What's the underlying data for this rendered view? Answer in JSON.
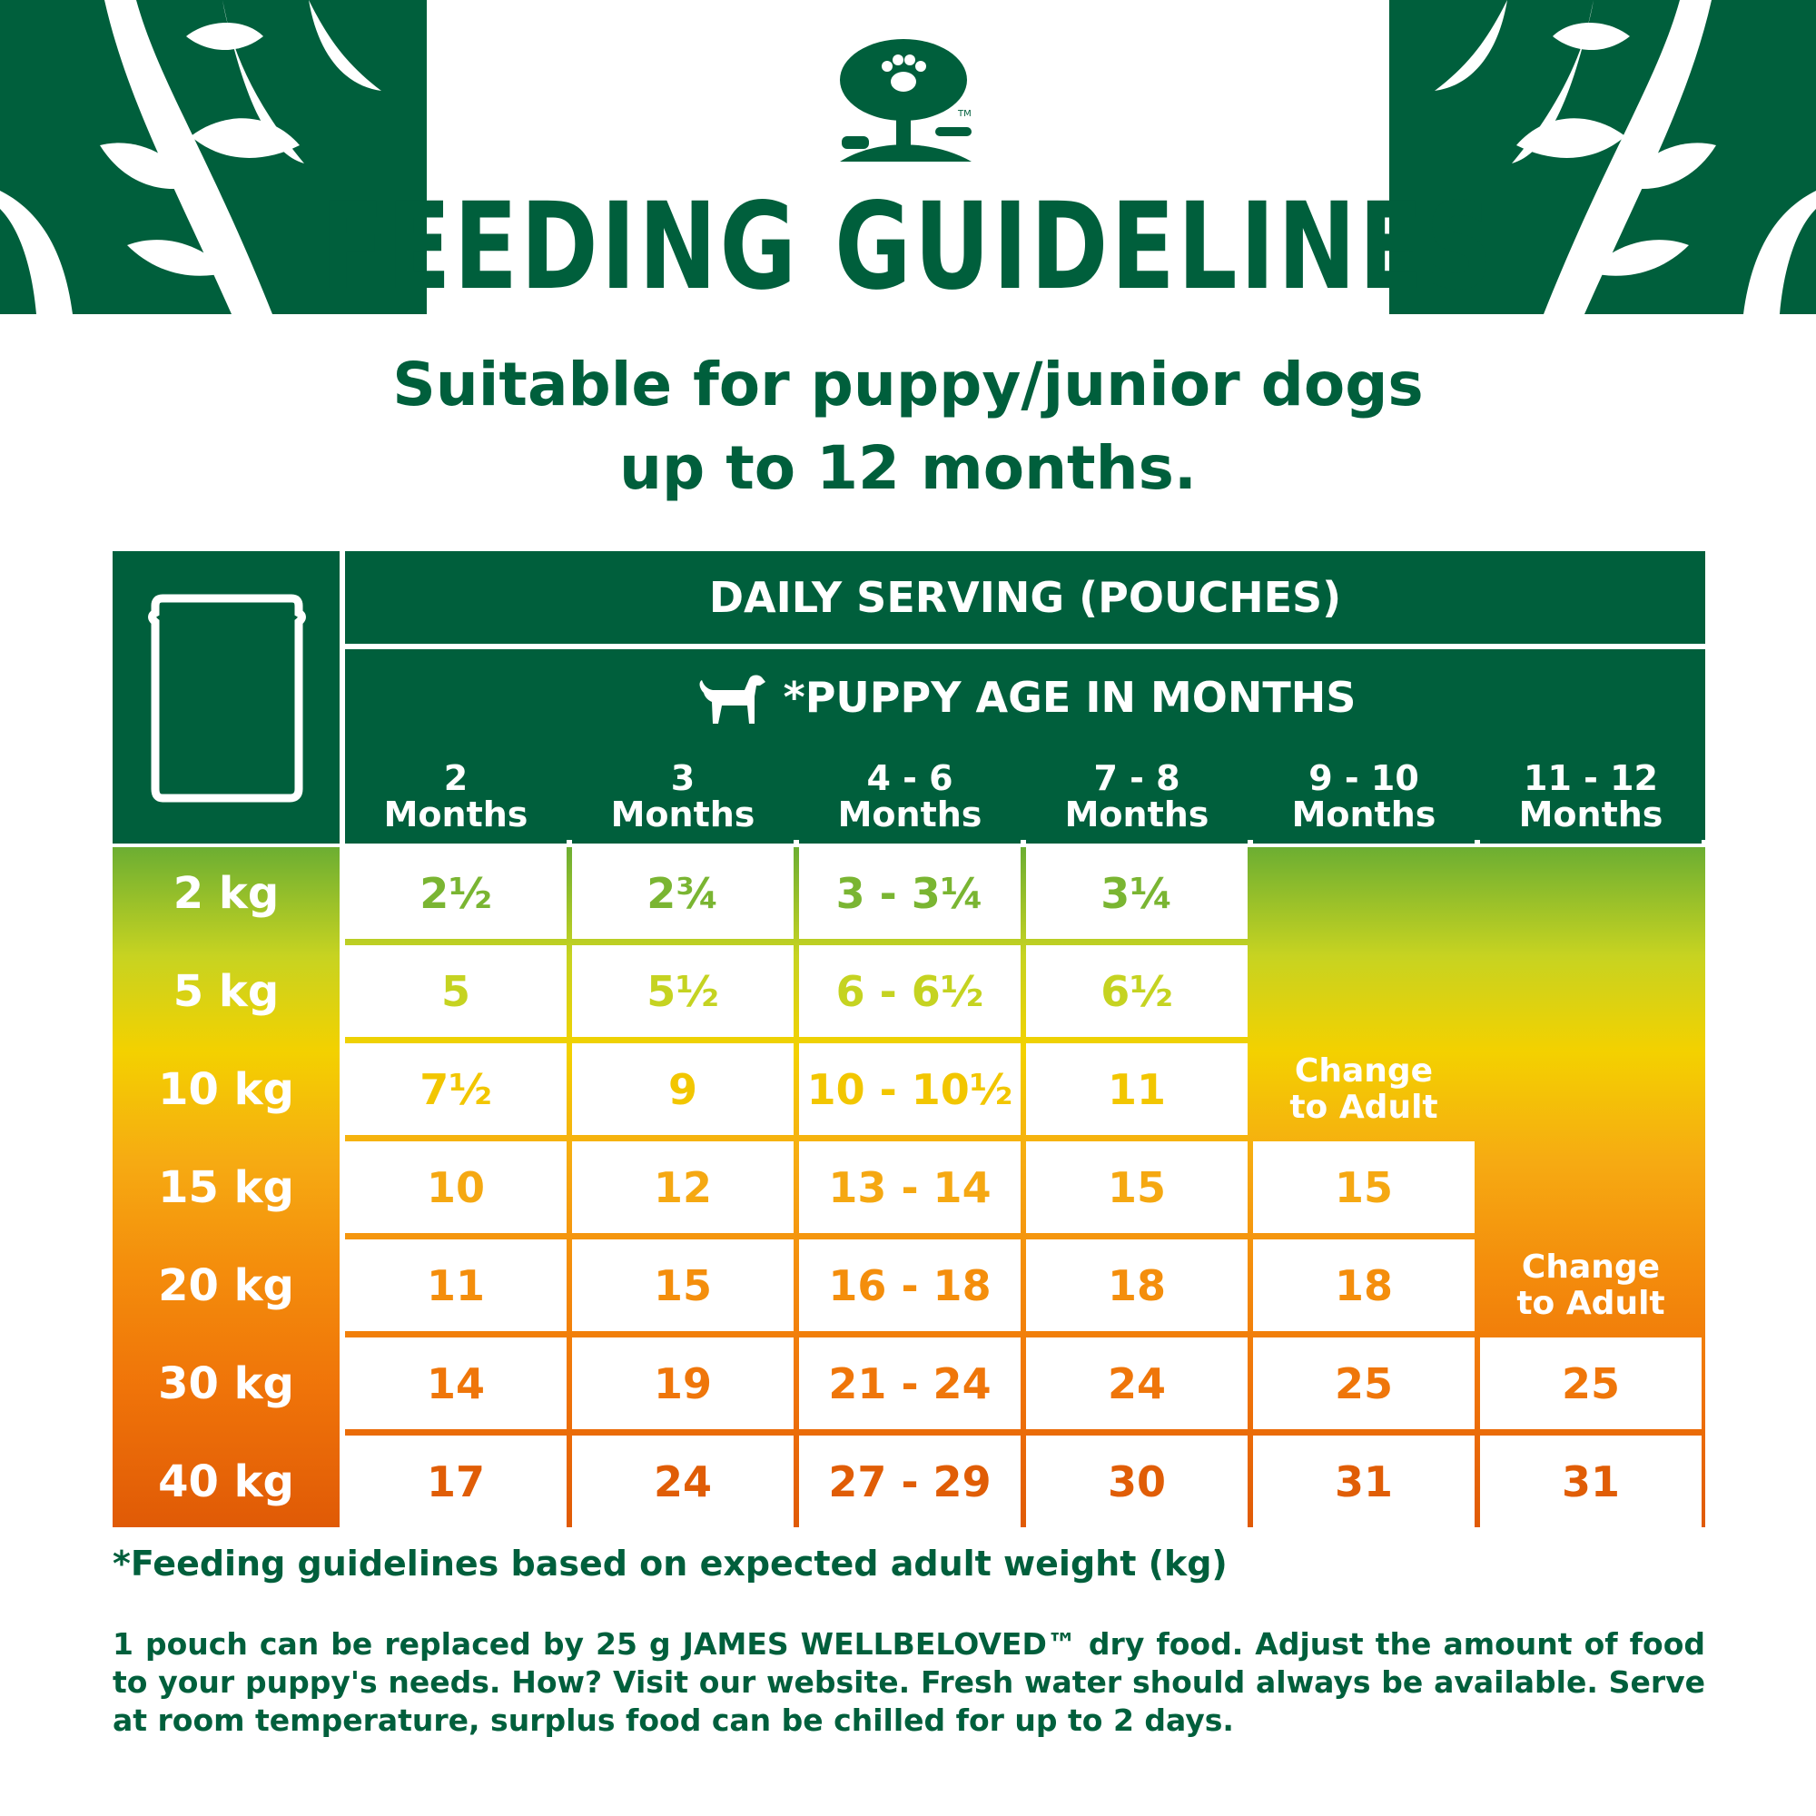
{
  "colors": {
    "brand_green": "#005f3c",
    "row_colors": [
      "#7ab532",
      "#c5d321",
      "#f2c600",
      "#f5a812",
      "#f48e0c",
      "#ef760a",
      "#e05d06"
    ]
  },
  "header": {
    "title": "FEEDING GUIDELINES",
    "subtitle_line1": "Suitable for puppy/junior dogs",
    "subtitle_line2": "up to 12 months."
  },
  "table": {
    "band1": "DAILY SERVING (POUCHES)",
    "band2": "*PUPPY AGE IN MONTHS",
    "age_columns": [
      {
        "top": "2",
        "bottom": "Months"
      },
      {
        "top": "3",
        "bottom": "Months"
      },
      {
        "top": "4 - 6",
        "bottom": "Months"
      },
      {
        "top": "7 - 8",
        "bottom": "Months"
      },
      {
        "top": "9 - 10",
        "bottom": "Months"
      },
      {
        "top": "11 - 12",
        "bottom": "Months"
      }
    ],
    "rows": [
      {
        "weight": "2 kg",
        "values": [
          "2½",
          "2¾",
          "3 - 3¼",
          "3¼",
          null,
          null
        ]
      },
      {
        "weight": "5 kg",
        "values": [
          "5",
          "5½",
          "6 - 6½",
          "6½",
          null,
          null
        ]
      },
      {
        "weight": "10 kg",
        "values": [
          "7½",
          "9",
          "10 - 10½",
          "11",
          null,
          null
        ]
      },
      {
        "weight": "15 kg",
        "values": [
          "10",
          "12",
          "13 - 14",
          "15",
          "15",
          null
        ]
      },
      {
        "weight": "20 kg",
        "values": [
          "11",
          "15",
          "16 - 18",
          "18",
          "18",
          null
        ]
      },
      {
        "weight": "30 kg",
        "values": [
          "14",
          "19",
          "21 - 24",
          "24",
          "25",
          "25"
        ]
      },
      {
        "weight": "40 kg",
        "values": [
          "17",
          "24",
          "27 - 29",
          "30",
          "31",
          "31"
        ]
      }
    ],
    "change_to_adult_1": {
      "line1": "Change",
      "line2": "to Adult"
    },
    "change_to_adult_2": {
      "line1": "Change",
      "line2": "to Adult"
    }
  },
  "footer": {
    "footnote": "*Feeding guidelines based on expected adult weight (kg)",
    "body": "1 pouch can be replaced by 25 g JAMES WELLBELOVED™ dry food. Adjust the amount of food to your puppy's needs. How? Visit our website. Fresh water should always be available. Serve at room temperature, surplus food can be chilled for up to 2 days."
  }
}
